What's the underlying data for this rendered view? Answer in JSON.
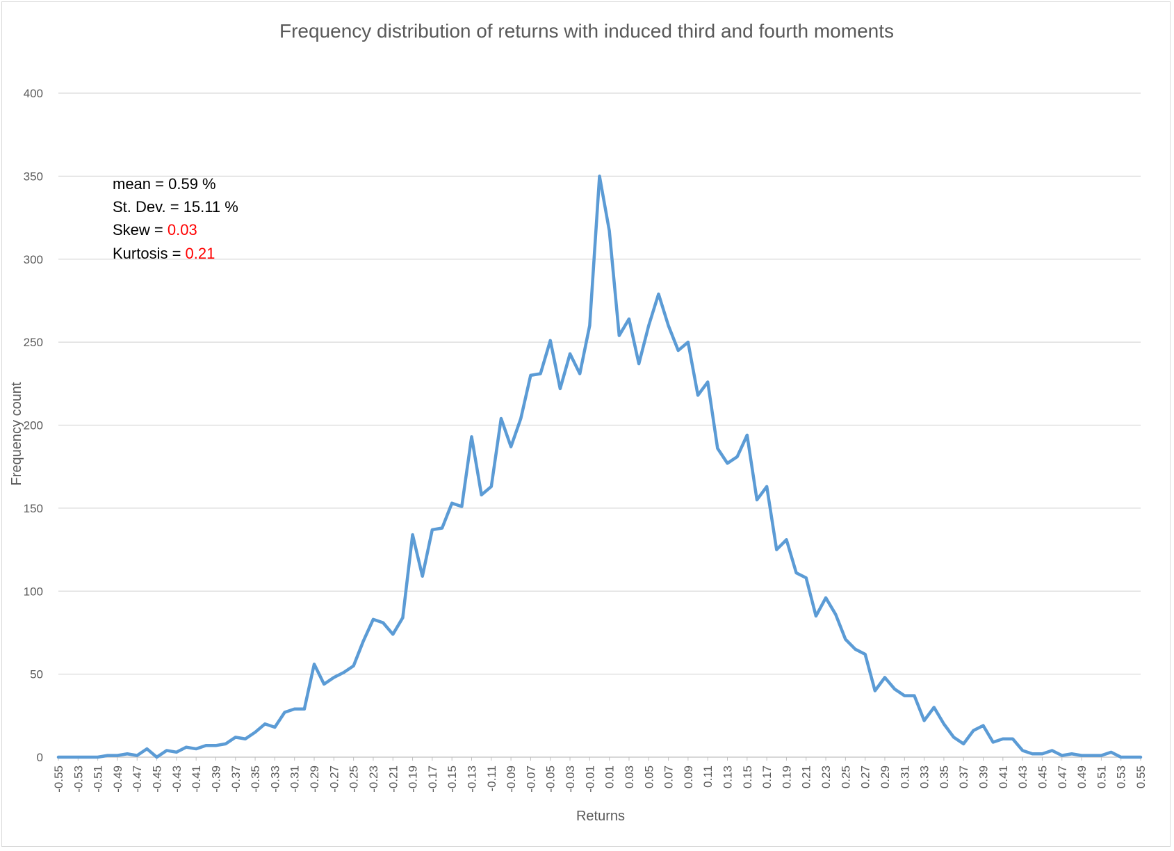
{
  "chart_data": {
    "type": "line",
    "title": "Frequency distribution of returns with induced third and fourth moments",
    "xlabel": "Returns",
    "ylabel": "Frequency count",
    "ylim": [
      0,
      400
    ],
    "yticks": [
      0,
      50,
      100,
      150,
      200,
      250,
      300,
      350,
      400
    ],
    "grid": "horizontal",
    "legend": "none",
    "line_color": "#5b9bd5",
    "x": [
      -0.55,
      -0.54,
      -0.53,
      -0.52,
      -0.51,
      -0.5,
      -0.49,
      -0.48,
      -0.47,
      -0.46,
      -0.45,
      -0.44,
      -0.43,
      -0.42,
      -0.41,
      -0.4,
      -0.39,
      -0.38,
      -0.37,
      -0.36,
      -0.35,
      -0.34,
      -0.33,
      -0.32,
      -0.31,
      -0.3,
      -0.29,
      -0.28,
      -0.27,
      -0.26,
      -0.25,
      -0.24,
      -0.23,
      -0.22,
      -0.21,
      -0.2,
      -0.19,
      -0.18,
      -0.17,
      -0.16,
      -0.15,
      -0.14,
      -0.13,
      -0.12,
      -0.11,
      -0.1,
      -0.09,
      -0.08,
      -0.07,
      -0.06,
      -0.05,
      -0.04,
      -0.03,
      -0.02,
      -0.01,
      0.0,
      0.01,
      0.02,
      0.03,
      0.04,
      0.05,
      0.06,
      0.07,
      0.08,
      0.09,
      0.1,
      0.11,
      0.12,
      0.13,
      0.14,
      0.15,
      0.16,
      0.17,
      0.18,
      0.19,
      0.2,
      0.21,
      0.22,
      0.23,
      0.24,
      0.25,
      0.26,
      0.27,
      0.28,
      0.29,
      0.3,
      0.31,
      0.32,
      0.33,
      0.34,
      0.35,
      0.36,
      0.37,
      0.38,
      0.39,
      0.4,
      0.41,
      0.42,
      0.43,
      0.44,
      0.45,
      0.46,
      0.47,
      0.48,
      0.49,
      0.5,
      0.51,
      0.52,
      0.53,
      0.54,
      0.55
    ],
    "values": [
      0,
      0,
      0,
      0,
      0,
      1,
      1,
      2,
      1,
      5,
      0,
      4,
      3,
      6,
      5,
      7,
      7,
      8,
      12,
      11,
      15,
      20,
      18,
      27,
      29,
      29,
      56,
      44,
      48,
      51,
      55,
      70,
      83,
      81,
      74,
      84,
      134,
      109,
      137,
      138,
      153,
      151,
      193,
      158,
      163,
      204,
      187,
      204,
      230,
      231,
      251,
      222,
      243,
      231,
      260,
      350,
      317,
      254,
      264,
      237,
      260,
      279,
      260,
      245,
      250,
      218,
      226,
      186,
      177,
      181,
      194,
      155,
      163,
      125,
      131,
      111,
      108,
      85,
      96,
      86,
      71,
      65,
      62,
      40,
      48,
      41,
      37,
      37,
      22,
      30,
      20,
      12,
      8,
      16,
      19,
      9,
      11,
      11,
      4,
      2,
      2,
      4,
      1,
      2,
      1,
      1,
      1,
      3,
      0,
      0,
      0
    ],
    "xtick_labels": [
      "-0.55",
      "-0.53",
      "-0.51",
      "-0.49",
      "-0.47",
      "-0.45",
      "-0.43",
      "-0.41",
      "-0.39",
      "-0.37",
      "-0.35",
      "-0.33",
      "-0.31",
      "-0.29",
      "-0.27",
      "-0.25",
      "-0.23",
      "-0.21",
      "-0.19",
      "-0.17",
      "-0.15",
      "-0.13",
      "-0.11",
      "-0.09",
      "-0.07",
      "-0.05",
      "-0.03",
      "-0.01",
      "0.01",
      "0.03",
      "0.05",
      "0.07",
      "0.09",
      "0.11",
      "0.13",
      "0.15",
      "0.17",
      "0.19",
      "0.21",
      "0.23",
      "0.25",
      "0.27",
      "0.29",
      "0.31",
      "0.33",
      "0.35",
      "0.37",
      "0.39",
      "0.41",
      "0.43",
      "0.45",
      "0.47",
      "0.49",
      "0.51",
      "0.53",
      "0.55"
    ],
    "annotations": {
      "mean": {
        "label": "mean = ",
        "value": "0.59 %"
      },
      "stdev": {
        "label": "St. Dev. = ",
        "value": "15.11 %"
      },
      "skew": {
        "label": "Skew = ",
        "value": "0.03",
        "color": "#ff0000"
      },
      "kurtosis": {
        "label": "Kurtosis = ",
        "value": "0.21",
        "color": "#ff0000"
      }
    }
  }
}
